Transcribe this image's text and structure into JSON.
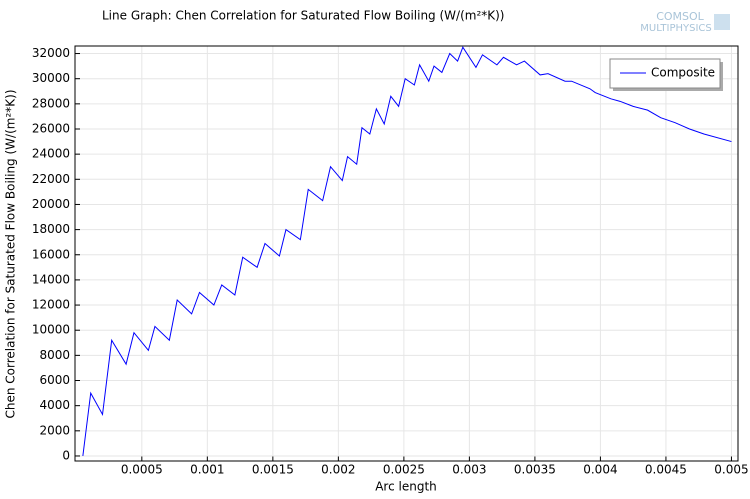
{
  "chart_data": {
    "type": "line",
    "title": "Line Graph: Chen Correlation for Saturated Flow Boiling (W/(m²*K))",
    "logo_text": [
      "COMSOL",
      "MULTIPHYSICS"
    ],
    "xlabel": "Arc length",
    "ylabel": "Chen Correlation for Saturated Flow Boiling (W/(m²*K))",
    "x": [
      5e-05,
      0.00011,
      0.0002,
      0.00027,
      0.00038,
      0.00044,
      0.00055,
      0.0006,
      0.00071,
      0.00077,
      0.00088,
      0.00094,
      0.00105,
      0.00111,
      0.00121,
      0.00127,
      0.00138,
      0.00144,
      0.00155,
      0.0016,
      0.00171,
      0.00177,
      0.00188,
      0.00194,
      0.00203,
      0.00207,
      0.00214,
      0.00218,
      0.00224,
      0.00229,
      0.00235,
      0.0024,
      0.00246,
      0.00251,
      0.00258,
      0.00262,
      0.00269,
      0.00273,
      0.00279,
      0.00285,
      0.00291,
      0.00295,
      0.00305,
      0.0031,
      0.00321,
      0.00326,
      0.00336,
      0.00342,
      0.00354,
      0.0036,
      0.00373,
      0.00378,
      0.00392,
      0.00396,
      0.00408,
      0.00415,
      0.00425,
      0.00436,
      0.00446,
      0.00457,
      0.00468,
      0.00479,
      0.005
    ],
    "series": [
      {
        "name": "Composite",
        "color": "#0000ff",
        "values": [
          0,
          5000,
          3300,
          9200,
          7300,
          9800,
          8400,
          10300,
          9200,
          12400,
          11300,
          13000,
          12000,
          13600,
          12800,
          15800,
          15000,
          16900,
          15900,
          18000,
          17200,
          21200,
          20300,
          23000,
          21900,
          23800,
          23200,
          26100,
          25600,
          27600,
          26400,
          28600,
          27800,
          30000,
          29500,
          31100,
          29800,
          31000,
          30500,
          32000,
          31400,
          32500,
          30900,
          31900,
          31100,
          31700,
          31100,
          31400,
          30300,
          30400,
          29800,
          29800,
          29200,
          28900,
          28400,
          28200,
          27800,
          27500,
          26900,
          26500,
          26000,
          25600,
          25000
        ]
      }
    ],
    "xlim": [
      -1e-05,
      0.00505
    ],
    "ylim": [
      -400,
      32600
    ],
    "xticks": [
      0.0005,
      0.001,
      0.0015,
      0.002,
      0.0025,
      0.003,
      0.0035,
      0.004,
      0.0045,
      0.005
    ],
    "yticks": [
      0,
      2000,
      4000,
      6000,
      8000,
      10000,
      12000,
      14000,
      16000,
      18000,
      20000,
      22000,
      24000,
      26000,
      28000,
      30000,
      32000
    ],
    "grid": true,
    "legend": "upper right"
  }
}
